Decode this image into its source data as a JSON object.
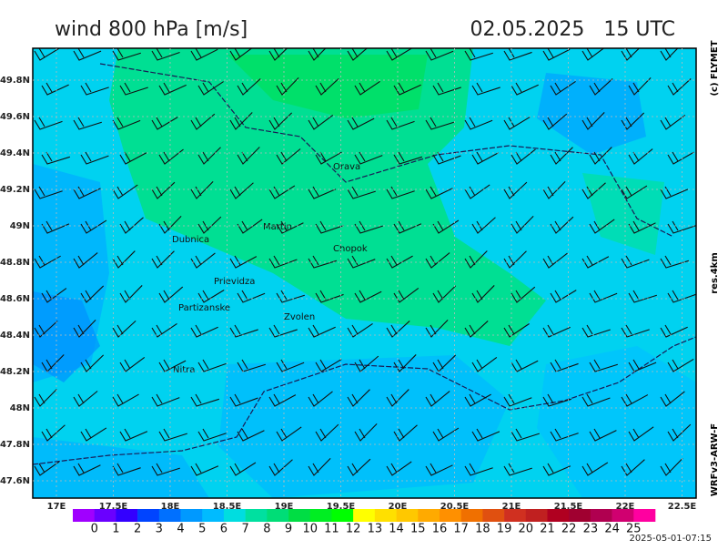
{
  "header": {
    "title": "wind 800 hPa [m/s]",
    "valid_time": "02.05.2025   15 UTC"
  },
  "side_labels": {
    "copyright": "(c) FLYMET",
    "resolution": "res.4km",
    "model": "WRFv3-ARW-F"
  },
  "map": {
    "lon_ticks": [
      {
        "value": 17,
        "label": "17E"
      },
      {
        "value": 17.5,
        "label": "17.5E"
      },
      {
        "value": 18,
        "label": "18E"
      },
      {
        "value": 18.5,
        "label": "18.5E"
      },
      {
        "value": 19,
        "label": "19E"
      },
      {
        "value": 19.5,
        "label": "19.5E"
      },
      {
        "value": 20,
        "label": "20E"
      },
      {
        "value": 20.5,
        "label": "20.5E"
      },
      {
        "value": 21,
        "label": "21E"
      },
      {
        "value": 21.5,
        "label": "21.5E"
      },
      {
        "value": 22,
        "label": "22E"
      },
      {
        "value": 22.5,
        "label": "22.5E"
      }
    ],
    "lat_ticks": [
      {
        "value": 47.6,
        "label": "47.6N"
      },
      {
        "value": 47.8,
        "label": "47.8N"
      },
      {
        "value": 48,
        "label": "48N"
      },
      {
        "value": 48.2,
        "label": "48.2N"
      },
      {
        "value": 48.4,
        "label": "48.4N"
      },
      {
        "value": 48.6,
        "label": "48.6N"
      },
      {
        "value": 48.8,
        "label": "48.8N"
      },
      {
        "value": 49,
        "label": "49N"
      },
      {
        "value": 49.2,
        "label": "49.2N"
      },
      {
        "value": 49.4,
        "label": "49.4N"
      },
      {
        "value": 49.6,
        "label": "49.6N"
      },
      {
        "value": 49.8,
        "label": "49.8N"
      }
    ],
    "cities": [
      "Orava",
      "Martin",
      "Dubnica",
      "Chopok",
      "Prievidza",
      "Partizanske",
      "Zvolen",
      "Nitra"
    ]
  },
  "colorbar": {
    "levels": [
      0,
      1,
      2,
      3,
      4,
      5,
      6,
      7,
      8,
      9,
      10,
      11,
      12,
      13,
      14,
      15,
      16,
      17,
      18,
      19,
      20,
      21,
      22,
      23,
      24,
      25
    ],
    "colors": [
      "#a000ff",
      "#6a00ff",
      "#3300ff",
      "#0044ff",
      "#0070ff",
      "#0099ff",
      "#00bbff",
      "#00dde0",
      "#00e0a0",
      "#00dd77",
      "#00dd44",
      "#00ee22",
      "#00ff00",
      "#ffff00",
      "#ffe000",
      "#ffc800",
      "#ffaa00",
      "#ff9000",
      "#f07000",
      "#e05010",
      "#d03020",
      "#c02020",
      "#b00020",
      "#a00030",
      "#b00050",
      "#d00070",
      "#ff00a0"
    ]
  },
  "footer": {
    "issued": "2025-05-01-07:15"
  }
}
